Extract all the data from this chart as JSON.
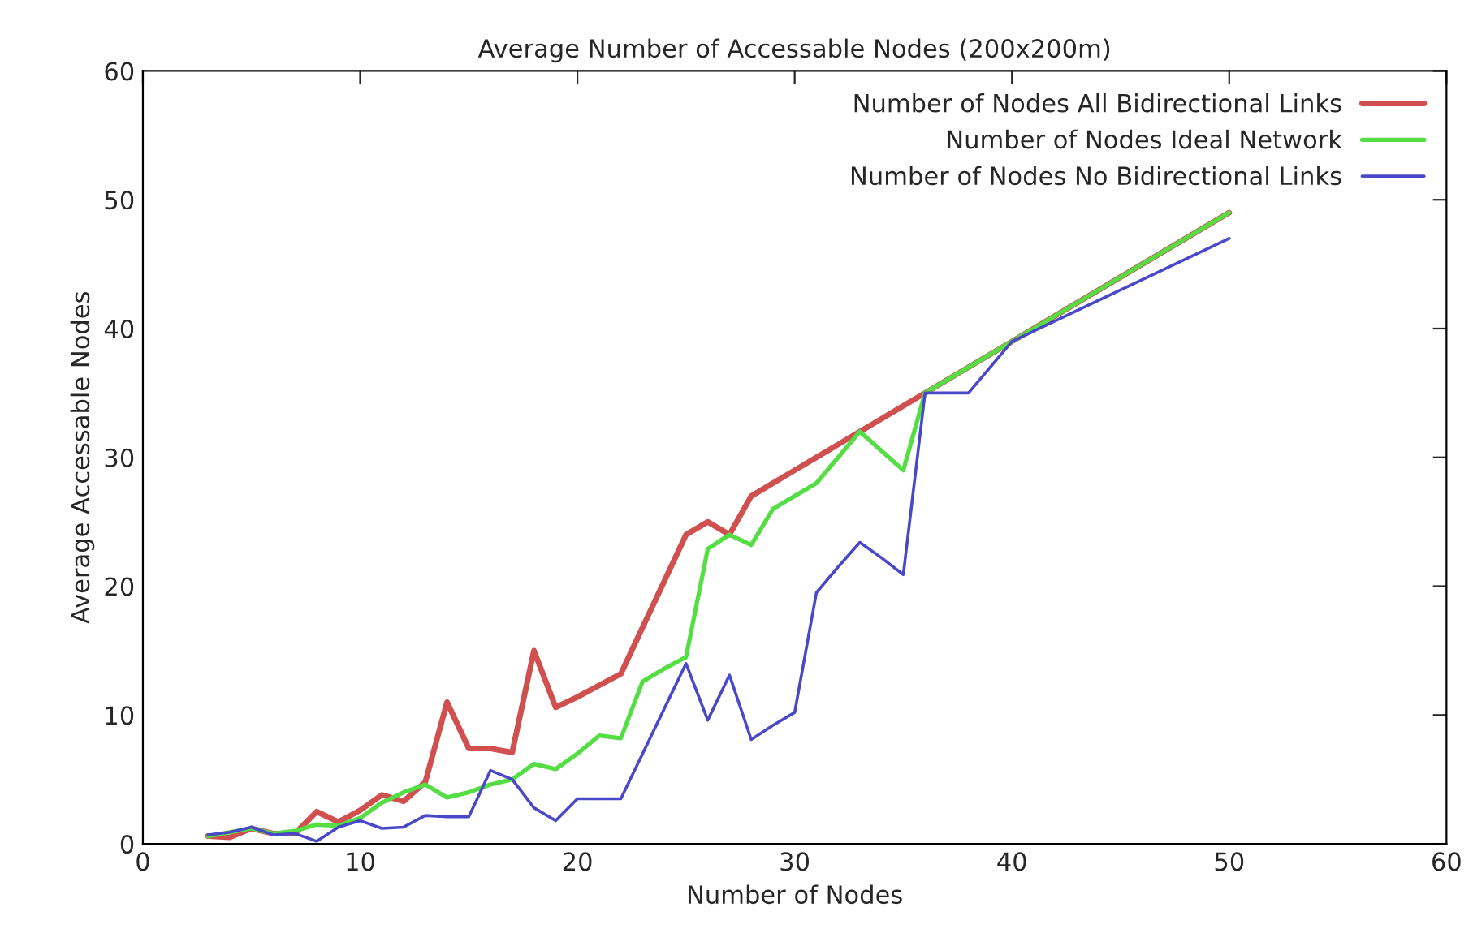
{
  "chart_data": {
    "type": "line",
    "title": "Average Number of Accessable Nodes (200x200m)",
    "xlabel": "Number of Nodes",
    "ylabel": "Average Accessable Nodes",
    "xlim": [
      0,
      60
    ],
    "ylim": [
      0,
      60
    ],
    "xticks": [
      0,
      10,
      20,
      30,
      40,
      50,
      60
    ],
    "yticks": [
      0,
      10,
      20,
      30,
      40,
      50,
      60
    ],
    "grid": false,
    "legend": "top right",
    "marker": "none",
    "line_style": "solid",
    "series": [
      {
        "name": "Number of Nodes All Bidirectional Links",
        "color": "#d05050",
        "x": [
          3,
          4,
          5,
          6,
          7,
          8,
          9,
          10,
          11,
          12,
          13,
          14,
          15,
          16,
          17,
          18,
          19,
          20,
          21,
          22,
          23,
          24,
          25,
          26,
          27,
          28,
          29,
          30,
          31,
          32,
          33,
          34,
          35,
          36,
          40,
          50
        ],
        "values": [
          0.6,
          0.5,
          1.2,
          0.8,
          0.8,
          2.5,
          1.7,
          2.6,
          3.8,
          3.3,
          4.8,
          11,
          7.4,
          7.4,
          7.1,
          15,
          10.6,
          11.4,
          12.3,
          13.2,
          16.8,
          20.4,
          24,
          25,
          24,
          27,
          28,
          29,
          30,
          31,
          32,
          33,
          34,
          35,
          39,
          49
        ]
      },
      {
        "name": "Number of Nodes Ideal Network",
        "color": "#55dd44",
        "x": [
          3,
          4,
          5,
          6,
          7,
          8,
          9,
          10,
          11,
          12,
          13,
          14,
          15,
          16,
          17,
          18,
          19,
          20,
          21,
          22,
          23,
          24,
          25,
          26,
          27,
          28,
          29,
          30,
          31,
          32,
          33,
          34,
          35,
          36,
          40,
          50
        ],
        "values": [
          0.6,
          0.9,
          1.2,
          0.8,
          1,
          1.5,
          1.4,
          2,
          3.2,
          4,
          4.6,
          3.6,
          4,
          4.6,
          5,
          6.2,
          5.8,
          7,
          8.4,
          8.2,
          12.6,
          13.6,
          14.5,
          22.9,
          24,
          23.2,
          26,
          27,
          28,
          30,
          32,
          30.5,
          29,
          35,
          39,
          49
        ]
      },
      {
        "name": "Number of Nodes No Bidirectional Links",
        "color": "#4848c8",
        "x": [
          3,
          4,
          5,
          6,
          7,
          8,
          9,
          10,
          11,
          12,
          13,
          14,
          15,
          16,
          17,
          18,
          19,
          20,
          21,
          22,
          23,
          24,
          25,
          26,
          27,
          28,
          29,
          30,
          31,
          32,
          33,
          34,
          35,
          36,
          38,
          40,
          50
        ],
        "values": [
          0.7,
          0.9,
          1.3,
          0.7,
          0.8,
          0.2,
          1.3,
          1.8,
          1.2,
          1.3,
          2.2,
          2.1,
          2.1,
          5.7,
          5,
          2.8,
          1.8,
          3.5,
          3.5,
          3.5,
          7,
          10.5,
          14,
          9.6,
          13.1,
          8.1,
          9.2,
          10.2,
          19.5,
          21.5,
          23.4,
          22.2,
          20.9,
          35,
          35,
          39,
          47
        ]
      }
    ]
  }
}
